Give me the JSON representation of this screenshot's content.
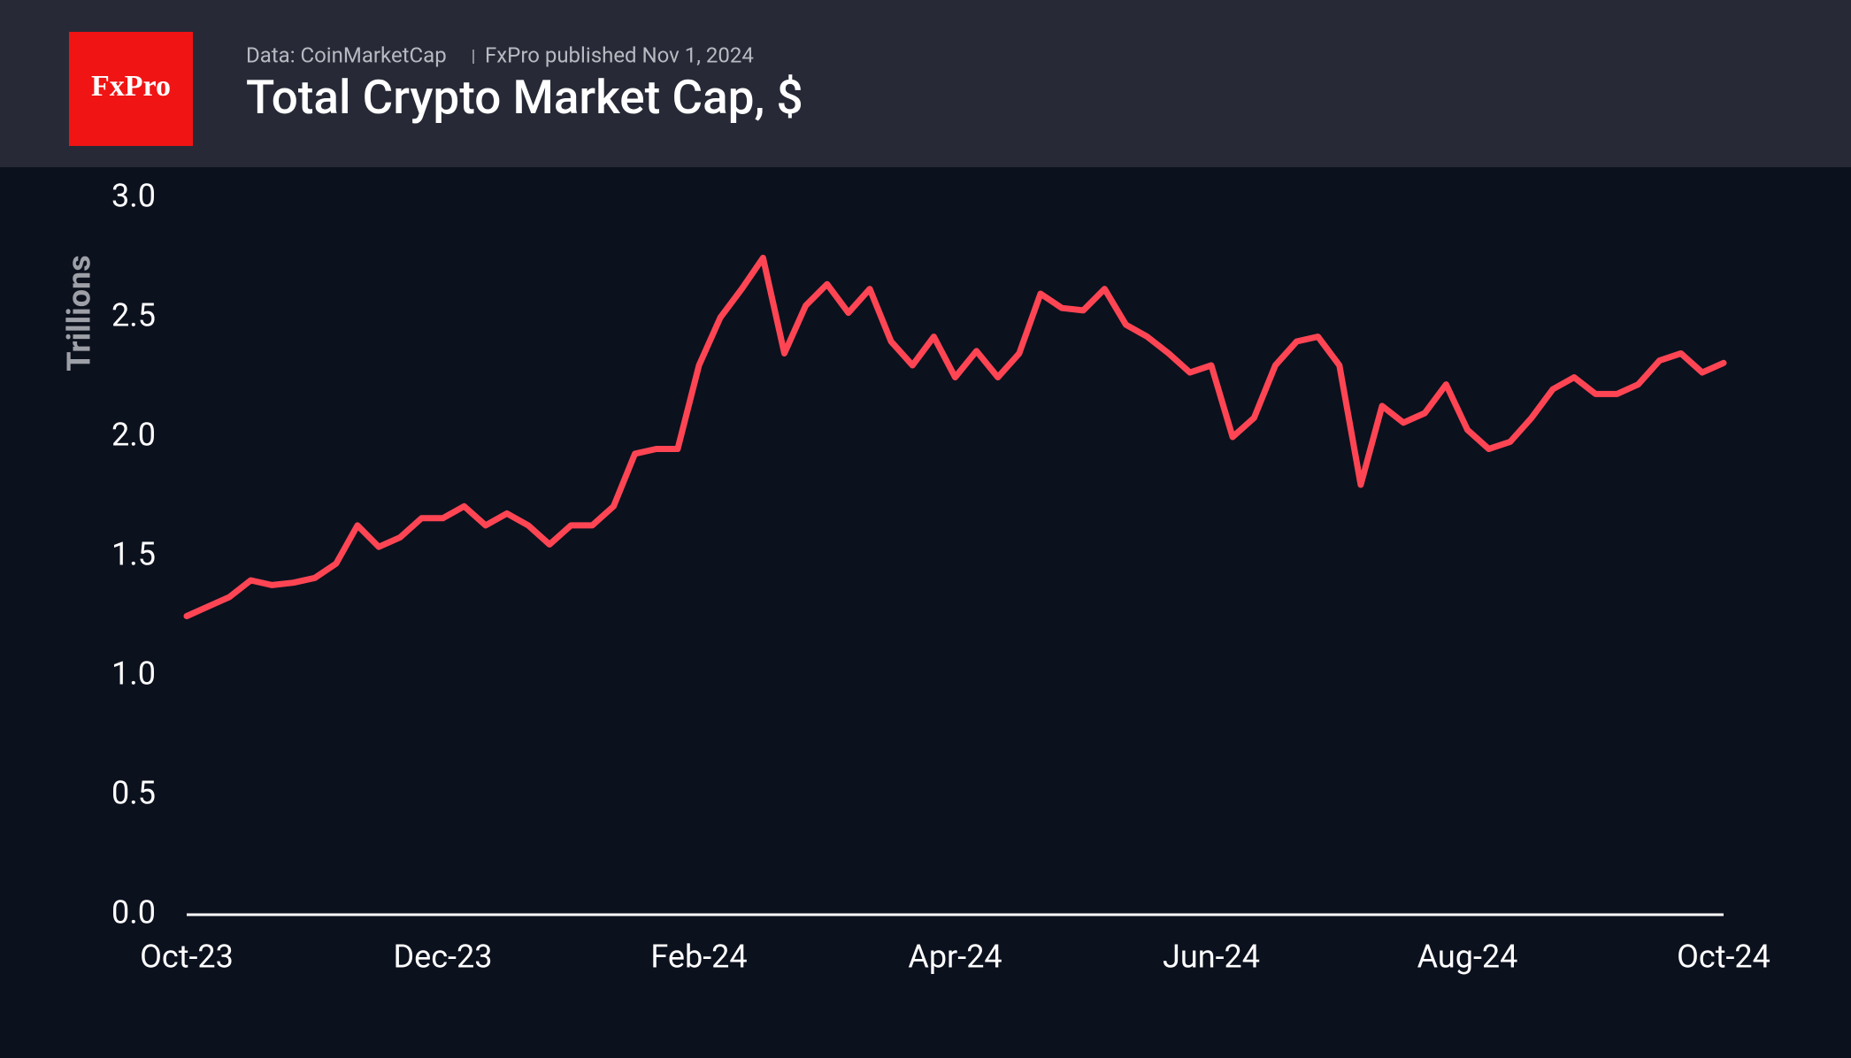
{
  "brand": "FxPro",
  "source": "Data: CoinMarketCap",
  "published": "FxPro published Nov 1, 2024",
  "chart_data": {
    "type": "line",
    "title": "Total Crypto Market Cap, $",
    "y_label": "Trillions",
    "categories": [
      "Oct-23",
      null,
      null,
      null,
      null,
      null,
      null,
      null,
      null,
      null,
      null,
      null,
      "Dec-23",
      null,
      null,
      null,
      null,
      null,
      null,
      null,
      null,
      null,
      null,
      null,
      "Feb-24",
      null,
      null,
      null,
      null,
      null,
      null,
      null,
      null,
      null,
      null,
      null,
      "Apr-24",
      null,
      null,
      null,
      null,
      null,
      null,
      null,
      null,
      null,
      null,
      null,
      "Jun-24",
      null,
      null,
      null,
      null,
      null,
      null,
      null,
      null,
      null,
      null,
      null,
      "Aug-24",
      null,
      null,
      null,
      null,
      null,
      null,
      null,
      null,
      null,
      null,
      null,
      "Oct-24"
    ],
    "series": [
      {
        "name": "Total Crypto Market Cap",
        "color": "#ff4553",
        "values": [
          1.25,
          1.29,
          1.33,
          1.4,
          1.38,
          1.39,
          1.41,
          1.47,
          1.63,
          1.54,
          1.58,
          1.66,
          1.66,
          1.71,
          1.63,
          1.68,
          1.63,
          1.55,
          1.63,
          1.63,
          1.71,
          1.93,
          1.95,
          1.95,
          2.3,
          2.5,
          2.62,
          2.75,
          2.35,
          2.55,
          2.64,
          2.52,
          2.62,
          2.4,
          2.3,
          2.42,
          2.25,
          2.36,
          2.25,
          2.35,
          2.6,
          2.54,
          2.53,
          2.62,
          2.47,
          2.42,
          2.35,
          2.27,
          2.3,
          2.0,
          2.08,
          2.3,
          2.4,
          2.42,
          2.3,
          1.8,
          2.13,
          2.06,
          2.1,
          2.22,
          2.03,
          1.95,
          1.98,
          2.08,
          2.2,
          2.25,
          2.18,
          2.18,
          2.22,
          2.32,
          2.35,
          2.27,
          2.31
        ]
      }
    ],
    "ylim": [
      0,
      3
    ],
    "yticks": [
      {
        "value": 0,
        "label": "0.0"
      },
      0.5,
      {
        "value": 1,
        "label": "1.0"
      },
      1.5,
      {
        "value": 2,
        "label": "2.0"
      },
      2.5,
      {
        "value": 3,
        "label": "3.0"
      }
    ]
  }
}
